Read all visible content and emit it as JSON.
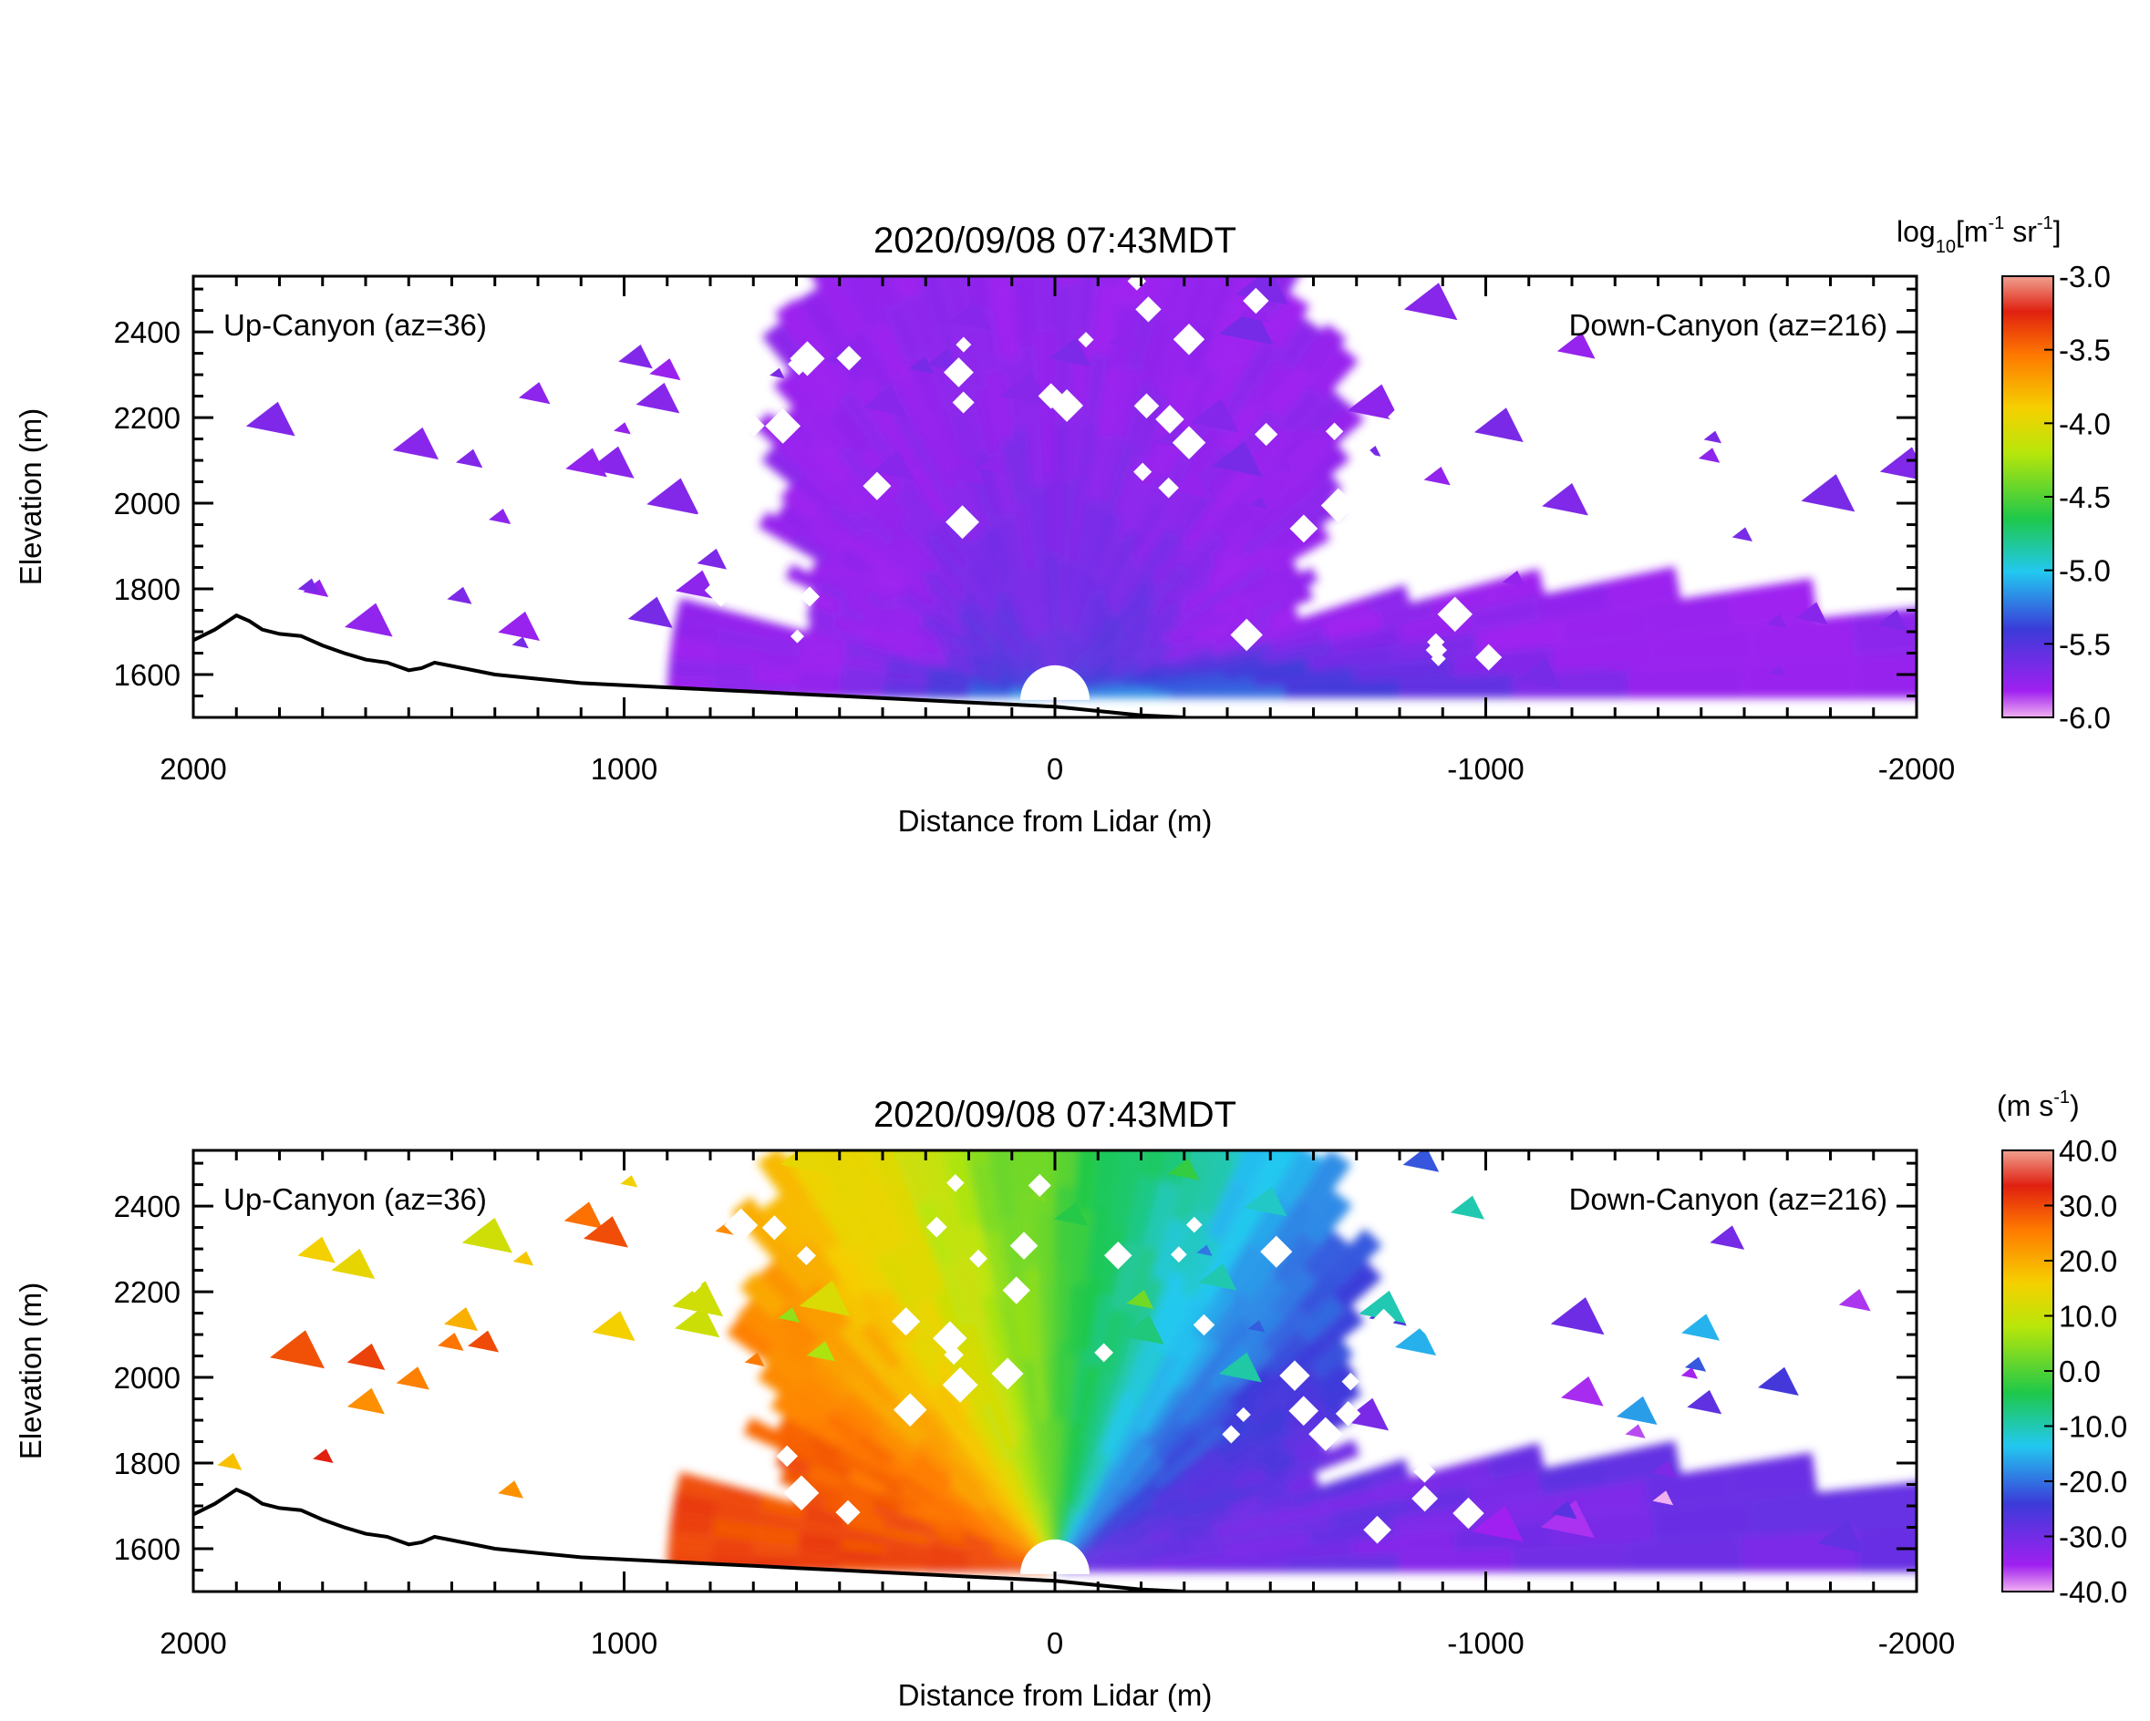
{
  "chart_data": [
    {
      "type": "heatmap",
      "title": "2020/09/08 07:43MDT",
      "xlabel": "Distance from Lidar (m)",
      "ylabel": "Elevation (m)",
      "xlim": [
        2000,
        -2000
      ],
      "ylim": [
        1500,
        2530
      ],
      "x_ticks": [
        2000,
        1000,
        0,
        -1000,
        -2000
      ],
      "x_tick_labels": [
        "2000",
        "1000",
        "0",
        "-1000",
        "-2000"
      ],
      "y_ticks": [
        1600,
        1800,
        2000,
        2200,
        2400
      ],
      "y_tick_labels": [
        "1600",
        "1800",
        "2000",
        "2200",
        "2400"
      ],
      "annotations": {
        "left": "Up-Canyon (az=36)",
        "right": "Down-Canyon (az=216)"
      },
      "colorbar": {
        "label_parts": [
          "log",
          "10",
          "[m",
          "-1",
          " sr",
          "-1",
          "]"
        ],
        "range": [
          -6.0,
          -3.0
        ],
        "ticks": [
          -3.0,
          -3.5,
          -4.0,
          -4.5,
          -5.0,
          -5.5,
          -6.0
        ],
        "tick_labels": [
          "-3.0",
          "-3.5",
          "-4.0",
          "-4.5",
          "-5.0",
          "-5.5",
          "-6.0"
        ]
      },
      "lidar_position": [
        0,
        1545
      ],
      "field": "backscatter",
      "grid": false
    },
    {
      "type": "heatmap",
      "title": "2020/09/08 07:43MDT",
      "xlabel": "Distance from Lidar (m)",
      "ylabel": "Elevation (m)",
      "xlim": [
        2000,
        -2000
      ],
      "ylim": [
        1500,
        2530
      ],
      "x_ticks": [
        2000,
        1000,
        0,
        -1000,
        -2000
      ],
      "x_tick_labels": [
        "2000",
        "1000",
        "0",
        "-1000",
        "-2000"
      ],
      "y_ticks": [
        1600,
        1800,
        2000,
        2200,
        2400
      ],
      "y_tick_labels": [
        "1600",
        "1800",
        "2000",
        "2200",
        "2400"
      ],
      "annotations": {
        "left": "Up-Canyon (az=36)",
        "right": "Down-Canyon (az=216)"
      },
      "colorbar": {
        "label_parts": [
          "(m s",
          "-1",
          ")"
        ],
        "range": [
          -40.0,
          40.0
        ],
        "ticks": [
          40.0,
          30.0,
          20.0,
          10.0,
          0.0,
          -10.0,
          -20.0,
          -30.0,
          -40.0
        ],
        "tick_labels": [
          "40.0",
          "30.0",
          "20.0",
          "10.0",
          "0.0",
          "-10.0",
          "-20.0",
          "-30.0",
          "-40.0"
        ]
      },
      "lidar_position": [
        0,
        1545
      ],
      "field": "radial_velocity",
      "grid": false
    }
  ],
  "terrain": {
    "x": [
      2000,
      1950,
      1900,
      1870,
      1840,
      1800,
      1750,
      1700,
      1650,
      1600,
      1550,
      1500,
      1470,
      1440,
      1400,
      1300,
      1200,
      1100,
      1000,
      900,
      800,
      700,
      600,
      500,
      400,
      300,
      200,
      100,
      0,
      -100,
      -200,
      -300
    ],
    "y": [
      1680,
      1705,
      1738,
      1725,
      1705,
      1695,
      1690,
      1668,
      1650,
      1635,
      1628,
      1610,
      1615,
      1628,
      1620,
      1600,
      1590,
      1580,
      1575,
      1570,
      1565,
      1560,
      1555,
      1550,
      1545,
      1540,
      1535,
      1530,
      1525,
      1515,
      1505,
      1500
    ]
  }
}
